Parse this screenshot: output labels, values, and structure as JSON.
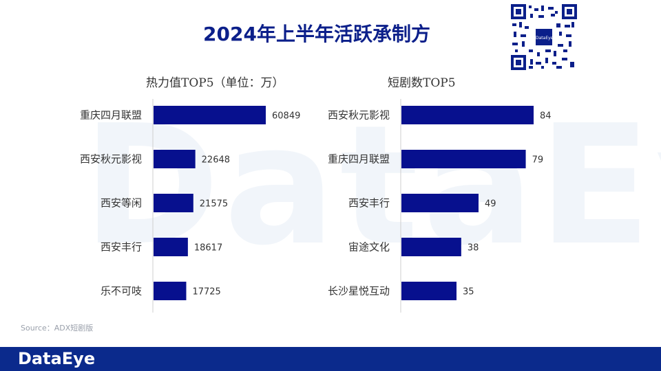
{
  "title": "2024年上半年活跃承制方",
  "watermark": "DataEye",
  "qr_label": "DataEye",
  "source": "Source：ADX短剧版",
  "footer_logo": "DataEye",
  "colors": {
    "bar": "#07108e",
    "title": "#0b1f8a",
    "footer": "#0b2a8c"
  },
  "chart_data": [
    {
      "type": "bar",
      "orientation": "horizontal",
      "title": "热力值TOP5（单位：万）",
      "categories": [
        "重庆四月联盟",
        "西安秋元影视",
        "西安等闲",
        "西安丰行",
        "乐不可吱"
      ],
      "values": [
        60849,
        22648,
        21575,
        18617,
        17725
      ],
      "xlim": [
        0,
        60849
      ]
    },
    {
      "type": "bar",
      "orientation": "horizontal",
      "title": "短剧数TOP5",
      "categories": [
        "西安秋元影视",
        "重庆四月联盟",
        "西安丰行",
        "宙途文化",
        "长沙星悦互动"
      ],
      "values": [
        84,
        79,
        49,
        38,
        35
      ],
      "xlim": [
        0,
        84
      ]
    }
  ]
}
